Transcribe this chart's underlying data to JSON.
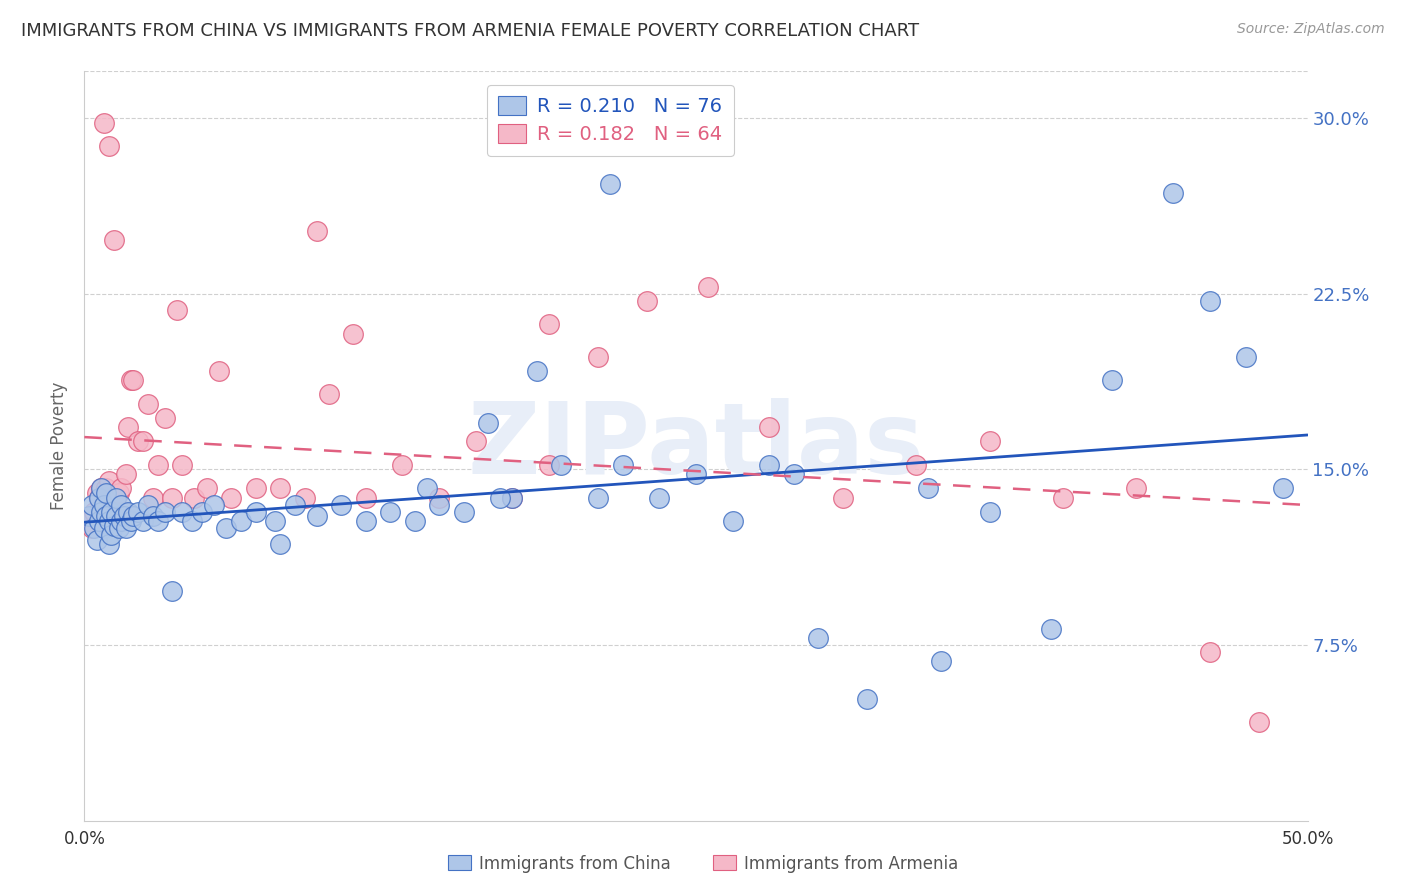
{
  "title": "IMMIGRANTS FROM CHINA VS IMMIGRANTS FROM ARMENIA FEMALE POVERTY CORRELATION CHART",
  "source": "Source: ZipAtlas.com",
  "ylabel": "Female Poverty",
  "yticks": [
    0.0,
    0.075,
    0.15,
    0.225,
    0.3
  ],
  "ytick_labels": [
    "",
    "7.5%",
    "15.0%",
    "22.5%",
    "30.0%"
  ],
  "xlim": [
    0.0,
    0.5
  ],
  "ylim": [
    0.0,
    0.32
  ],
  "china_R": 0.21,
  "china_N": 76,
  "armenia_R": 0.182,
  "armenia_N": 64,
  "china_color": "#aec6e8",
  "armenia_color": "#f5b8c8",
  "china_edge_color": "#4472c4",
  "armenia_edge_color": "#e06080",
  "china_line_color": "#2255bb",
  "armenia_line_color": "#e06080",
  "background_color": "#ffffff",
  "title_fontsize": 13,
  "source_fontsize": 10,
  "watermark_color": "#e8eef8",
  "china_x": [
    0.002,
    0.003,
    0.004,
    0.005,
    0.006,
    0.006,
    0.007,
    0.007,
    0.008,
    0.008,
    0.009,
    0.009,
    0.01,
    0.01,
    0.011,
    0.011,
    0.012,
    0.013,
    0.013,
    0.014,
    0.015,
    0.015,
    0.016,
    0.017,
    0.018,
    0.019,
    0.02,
    0.022,
    0.024,
    0.026,
    0.028,
    0.03,
    0.033,
    0.036,
    0.04,
    0.044,
    0.048,
    0.053,
    0.058,
    0.064,
    0.07,
    0.078,
    0.086,
    0.095,
    0.105,
    0.115,
    0.125,
    0.135,
    0.145,
    0.155,
    0.165,
    0.175,
    0.185,
    0.195,
    0.21,
    0.22,
    0.235,
    0.25,
    0.265,
    0.28,
    0.3,
    0.32,
    0.345,
    0.37,
    0.395,
    0.42,
    0.445,
    0.46,
    0.475,
    0.49,
    0.17,
    0.29,
    0.215,
    0.35,
    0.14,
    0.08
  ],
  "china_y": [
    0.13,
    0.135,
    0.125,
    0.12,
    0.128,
    0.138,
    0.132,
    0.142,
    0.125,
    0.135,
    0.13,
    0.14,
    0.118,
    0.128,
    0.122,
    0.132,
    0.126,
    0.13,
    0.138,
    0.125,
    0.128,
    0.135,
    0.13,
    0.125,
    0.132,
    0.128,
    0.13,
    0.132,
    0.128,
    0.135,
    0.13,
    0.128,
    0.132,
    0.098,
    0.132,
    0.128,
    0.132,
    0.135,
    0.125,
    0.128,
    0.132,
    0.128,
    0.135,
    0.13,
    0.135,
    0.128,
    0.132,
    0.128,
    0.135,
    0.132,
    0.17,
    0.138,
    0.192,
    0.152,
    0.138,
    0.152,
    0.138,
    0.148,
    0.128,
    0.152,
    0.078,
    0.052,
    0.142,
    0.132,
    0.082,
    0.188,
    0.268,
    0.222,
    0.198,
    0.142,
    0.138,
    0.148,
    0.272,
    0.068,
    0.142,
    0.118
  ],
  "armenia_x": [
    0.002,
    0.003,
    0.004,
    0.005,
    0.006,
    0.006,
    0.007,
    0.007,
    0.008,
    0.008,
    0.009,
    0.009,
    0.01,
    0.01,
    0.011,
    0.012,
    0.013,
    0.014,
    0.015,
    0.016,
    0.017,
    0.018,
    0.019,
    0.02,
    0.022,
    0.024,
    0.026,
    0.028,
    0.03,
    0.033,
    0.036,
    0.04,
    0.045,
    0.05,
    0.055,
    0.06,
    0.07,
    0.08,
    0.09,
    0.1,
    0.115,
    0.13,
    0.145,
    0.16,
    0.175,
    0.19,
    0.21,
    0.23,
    0.255,
    0.28,
    0.31,
    0.34,
    0.37,
    0.4,
    0.43,
    0.46,
    0.48,
    0.008,
    0.01,
    0.012,
    0.095,
    0.11,
    0.19,
    0.038
  ],
  "armenia_y": [
    0.128,
    0.125,
    0.132,
    0.14,
    0.128,
    0.138,
    0.132,
    0.142,
    0.128,
    0.138,
    0.132,
    0.142,
    0.135,
    0.145,
    0.13,
    0.138,
    0.132,
    0.14,
    0.142,
    0.132,
    0.148,
    0.168,
    0.188,
    0.188,
    0.162,
    0.162,
    0.178,
    0.138,
    0.152,
    0.172,
    0.138,
    0.152,
    0.138,
    0.142,
    0.192,
    0.138,
    0.142,
    0.142,
    0.138,
    0.182,
    0.138,
    0.152,
    0.138,
    0.162,
    0.138,
    0.152,
    0.198,
    0.222,
    0.228,
    0.168,
    0.138,
    0.152,
    0.162,
    0.138,
    0.142,
    0.072,
    0.042,
    0.298,
    0.288,
    0.248,
    0.252,
    0.208,
    0.212,
    0.218
  ]
}
